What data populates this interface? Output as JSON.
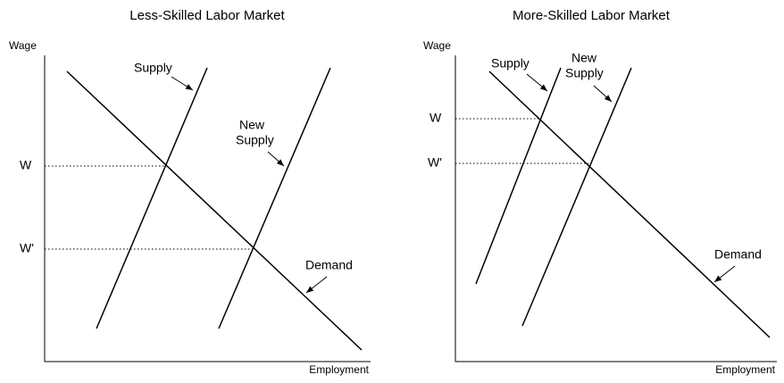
{
  "panels": [
    {
      "title": "Less-Skilled Labor Market",
      "y_label": "Wage",
      "x_label": "Employment",
      "wage_label": "W",
      "new_wage_label": "W'",
      "supply_label": "Supply",
      "new_supply_label": [
        "New",
        "Supply"
      ],
      "demand_label": "Demand"
    },
    {
      "title": "More-Skilled Labor Market",
      "y_label": "Wage",
      "x_label": "Employment",
      "wage_label": "W",
      "new_wage_label": "W'",
      "supply_label": "Supply",
      "new_supply_label": [
        "New",
        "Supply"
      ],
      "demand_label": "Demand"
    }
  ]
}
